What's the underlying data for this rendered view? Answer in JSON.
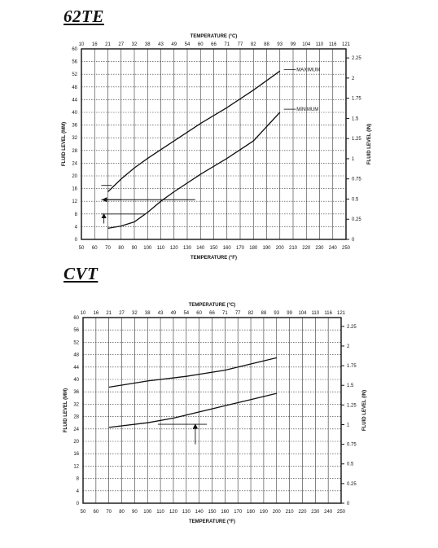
{
  "colors": {
    "ink": "#111111",
    "grid": "#333333",
    "paper": "#ffffff"
  },
  "chart_data": [
    {
      "type": "line",
      "heading": "62TE",
      "top_axis_label": "TEMPERATURE (°C)",
      "top_ticks": [
        "10",
        "16",
        "21",
        "27",
        "32",
        "38",
        "43",
        "49",
        "54",
        "60",
        "66",
        "71",
        "77",
        "82",
        "88",
        "93",
        "99",
        "104",
        "110",
        "116",
        "121"
      ],
      "xlabel": "TEMPERATURE (°F)",
      "ylabel": "FLUID LEVEL (MM)",
      "y2label": "FLUID LEVEL (IN)",
      "xlim": [
        50,
        250
      ],
      "ylim": [
        0,
        60
      ],
      "x_ticks": [
        50,
        60,
        70,
        80,
        90,
        100,
        110,
        120,
        130,
        140,
        150,
        160,
        170,
        180,
        190,
        200,
        210,
        220,
        230,
        240,
        250
      ],
      "y_ticks": [
        0,
        4,
        8,
        12,
        16,
        20,
        24,
        28,
        32,
        36,
        40,
        44,
        48,
        52,
        56,
        60
      ],
      "y2_ticks": [
        {
          "label": "0",
          "mm": 0
        },
        {
          "label": "0.25",
          "mm": 6.35
        },
        {
          "label": "0.5",
          "mm": 12.7
        },
        {
          "label": "0.75",
          "mm": 19.05
        },
        {
          "label": "1",
          "mm": 25.4
        },
        {
          "label": "1.25",
          "mm": 31.75
        },
        {
          "label": "1.5",
          "mm": 38.1
        },
        {
          "label": "1.75",
          "mm": 44.45
        },
        {
          "label": "2",
          "mm": 50.8
        },
        {
          "label": "2.25",
          "mm": 57.15
        }
      ],
      "grid": true,
      "series": [
        {
          "name": "MAXIMUM",
          "x": [
            70,
            80,
            90,
            100,
            120,
            140,
            160,
            180,
            200
          ],
          "y": [
            15,
            19,
            22.5,
            25.5,
            31,
            36.5,
            41.5,
            47,
            53
          ]
        },
        {
          "name": "MINIMUM",
          "x": [
            70,
            80,
            90,
            95,
            100,
            110,
            120,
            140,
            160,
            180,
            200
          ],
          "y": [
            3.5,
            4.2,
            5.5,
            7,
            8.5,
            12,
            15,
            20.5,
            25.5,
            31,
            40
          ]
        }
      ],
      "annotations": {
        "leader_max": {
          "from": [
            203,
            53.5
          ],
          "to": [
            212,
            53.5
          ]
        },
        "leader_min": {
          "from": [
            203,
            41
          ],
          "to": [
            212,
            41
          ]
        },
        "guide_lines": [
          {
            "from": [
              65,
              17
            ],
            "to": [
              73,
              17
            ]
          },
          {
            "from": [
              65,
              12.5
            ],
            "to": [
              136,
              12.5
            ]
          },
          {
            "from": [
              65,
              8
            ],
            "to": [
              98,
              8
            ]
          }
        ],
        "arrows": [
          {
            "from": [
              80,
              12.5
            ],
            "to": [
              66,
              12.5
            ]
          },
          {
            "from": [
              67,
              5
            ],
            "to": [
              67,
              8
            ]
          }
        ]
      }
    },
    {
      "type": "line",
      "heading": "CVT",
      "top_axis_label": "TEMPERATURE (°C)",
      "top_ticks": [
        "10",
        "16",
        "21",
        "27",
        "32",
        "38",
        "43",
        "49",
        "54",
        "60",
        "66",
        "71",
        "77",
        "82",
        "88",
        "93",
        "99",
        "104",
        "110",
        "116",
        "121"
      ],
      "xlabel": "TEMPERATURE (°F)",
      "ylabel": "FLUID LEVEL (MM)",
      "y2label": "FLUID LEVEL (IN)",
      "xlim": [
        50,
        250
      ],
      "ylim": [
        0,
        60
      ],
      "x_ticks": [
        50,
        60,
        70,
        80,
        90,
        100,
        110,
        120,
        130,
        140,
        150,
        160,
        170,
        180,
        190,
        200,
        210,
        220,
        230,
        240,
        250
      ],
      "y_ticks": [
        0,
        4,
        8,
        12,
        16,
        20,
        24,
        28,
        32,
        36,
        40,
        44,
        48,
        52,
        56,
        60
      ],
      "y2_ticks": [
        {
          "label": "0",
          "mm": 0
        },
        {
          "label": "0.25",
          "mm": 6.35
        },
        {
          "label": "0.5",
          "mm": 12.7
        },
        {
          "label": "0.75",
          "mm": 19.05
        },
        {
          "label": "1",
          "mm": 25.4
        },
        {
          "label": "1.25",
          "mm": 31.75
        },
        {
          "label": "1.5",
          "mm": 38.1
        },
        {
          "label": "1.75",
          "mm": 44.45
        },
        {
          "label": "2",
          "mm": 50.8
        },
        {
          "label": "2.25",
          "mm": 57.15
        }
      ],
      "grid": true,
      "series": [
        {
          "x": [
            70,
            100,
            130,
            160,
            200
          ],
          "y": [
            37.5,
            39.5,
            41,
            43,
            47
          ]
        },
        {
          "x": [
            70,
            100,
            120,
            140,
            160,
            180,
            200
          ],
          "y": [
            24.5,
            26,
            27.5,
            29.5,
            31.5,
            33.5,
            35.5
          ]
        }
      ],
      "annotations": {
        "leader_max": null,
        "leader_min": null,
        "guide_lines": [
          {
            "from": [
              108,
              25.5
            ],
            "to": [
              146,
              25.5
            ]
          }
        ],
        "arrows": [
          {
            "from": [
              137,
              19
            ],
            "to": [
              137,
              25.5
            ]
          }
        ]
      }
    }
  ]
}
